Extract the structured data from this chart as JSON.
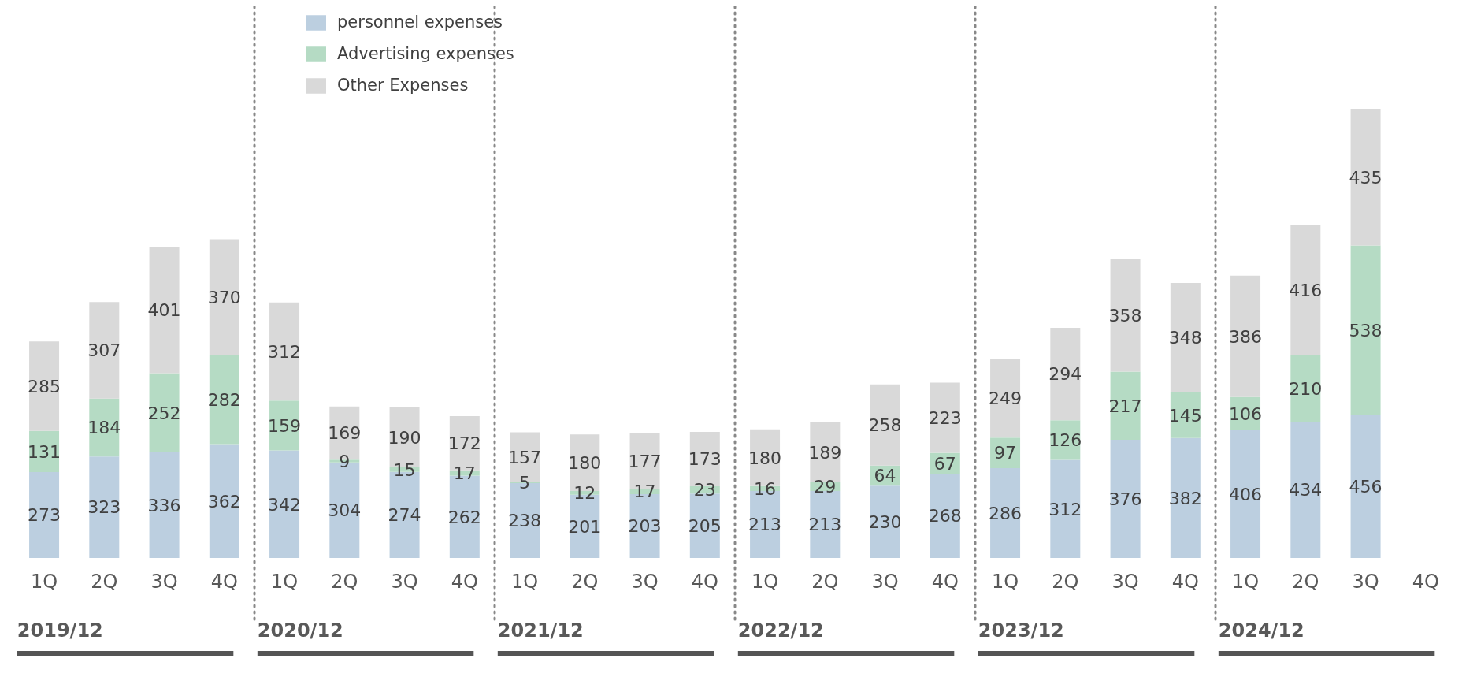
{
  "chart_data": {
    "type": "bar",
    "stacked": true,
    "data_labels": true,
    "legend": "top",
    "categories": [
      "1Q",
      "2Q",
      "3Q",
      "4Q",
      "1Q",
      "2Q",
      "3Q",
      "4Q",
      "1Q",
      "2Q",
      "3Q",
      "4Q",
      "1Q",
      "2Q",
      "3Q",
      "4Q",
      "1Q",
      "2Q",
      "3Q",
      "4Q",
      "1Q",
      "2Q",
      "3Q",
      "4Q"
    ],
    "annotations": [
      "2019/12",
      "2020/12",
      "2021/12",
      "2022/12",
      "2023/12",
      "2024/12"
    ],
    "series": [
      {
        "name": "personnel expenses",
        "color": "#bccfe0",
        "values": [
          273,
          323,
          336,
          362,
          342,
          304,
          274,
          262,
          238,
          201,
          203,
          205,
          213,
          213,
          230,
          268,
          286,
          312,
          376,
          382,
          406,
          434,
          456,
          null
        ]
      },
      {
        "name": "Advertising expenses",
        "color": "#b5dbc4",
        "values": [
          131,
          184,
          252,
          282,
          159,
          9,
          15,
          17,
          5,
          12,
          17,
          23,
          16,
          29,
          64,
          67,
          97,
          126,
          217,
          145,
          106,
          210,
          538,
          null
        ]
      },
      {
        "name": "Other Expenses",
        "color": "#d9d9d9",
        "values": [
          285,
          307,
          401,
          370,
          312,
          169,
          190,
          172,
          157,
          180,
          177,
          173,
          180,
          189,
          258,
          223,
          249,
          294,
          358,
          348,
          386,
          416,
          435,
          null
        ]
      }
    ]
  }
}
